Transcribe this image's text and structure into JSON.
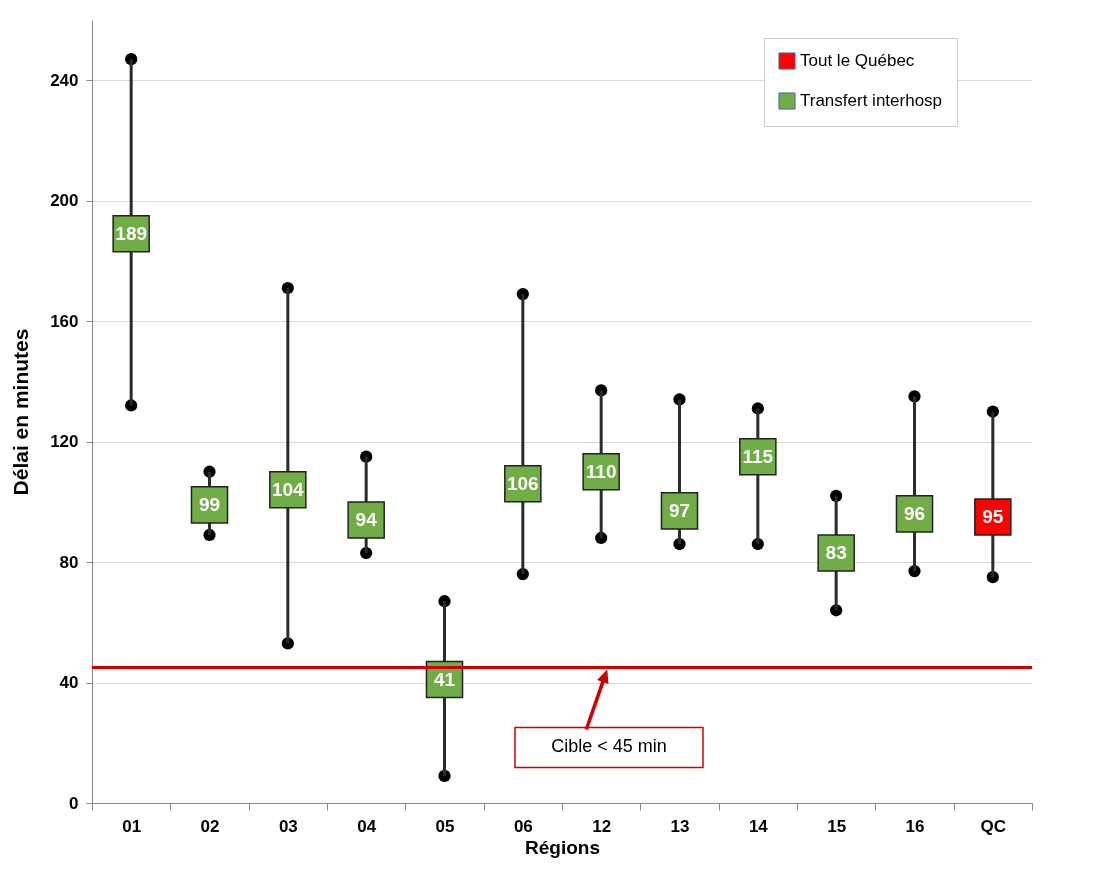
{
  "chart_data": {
    "type": "scatter",
    "xlabel": "Régions",
    "ylabel": "Délai en minutes",
    "categories": [
      "01",
      "02",
      "03",
      "04",
      "05",
      "06",
      "12",
      "13",
      "14",
      "15",
      "16",
      "QC"
    ],
    "series": [
      {
        "name": "Tout le Québec",
        "color": "#ff0000",
        "values": [
          null,
          null,
          null,
          null,
          null,
          null,
          null,
          null,
          null,
          null,
          null,
          95
        ],
        "errors": [
          null,
          null,
          null,
          null,
          null,
          null,
          null,
          null,
          null,
          null,
          null,
          [
            75,
            130
          ]
        ]
      },
      {
        "name": "Transfert interhosp",
        "color": "#70ad47",
        "values": [
          189,
          99,
          104,
          94,
          41,
          106,
          110,
          97,
          115,
          83,
          96,
          null
        ],
        "errors": [
          [
            132,
            247
          ],
          [
            89,
            110
          ],
          [
            53,
            171
          ],
          [
            83,
            115
          ],
          [
            9,
            67
          ],
          [
            76,
            169
          ],
          [
            88,
            137
          ],
          [
            86,
            134
          ],
          [
            86,
            131
          ],
          [
            64,
            102
          ],
          [
            77,
            135
          ],
          null
        ]
      }
    ],
    "ylim": [
      0,
      260
    ],
    "yticks": [
      0,
      40,
      80,
      120,
      160,
      200,
      240
    ],
    "grid": "y",
    "legend": "top right",
    "marker": "square",
    "data_labels": true,
    "ref_lines": [
      {
        "axis": "y",
        "value": 45,
        "color": "#d00000"
      }
    ],
    "annotations": [
      "Cible < 45 min"
    ]
  }
}
